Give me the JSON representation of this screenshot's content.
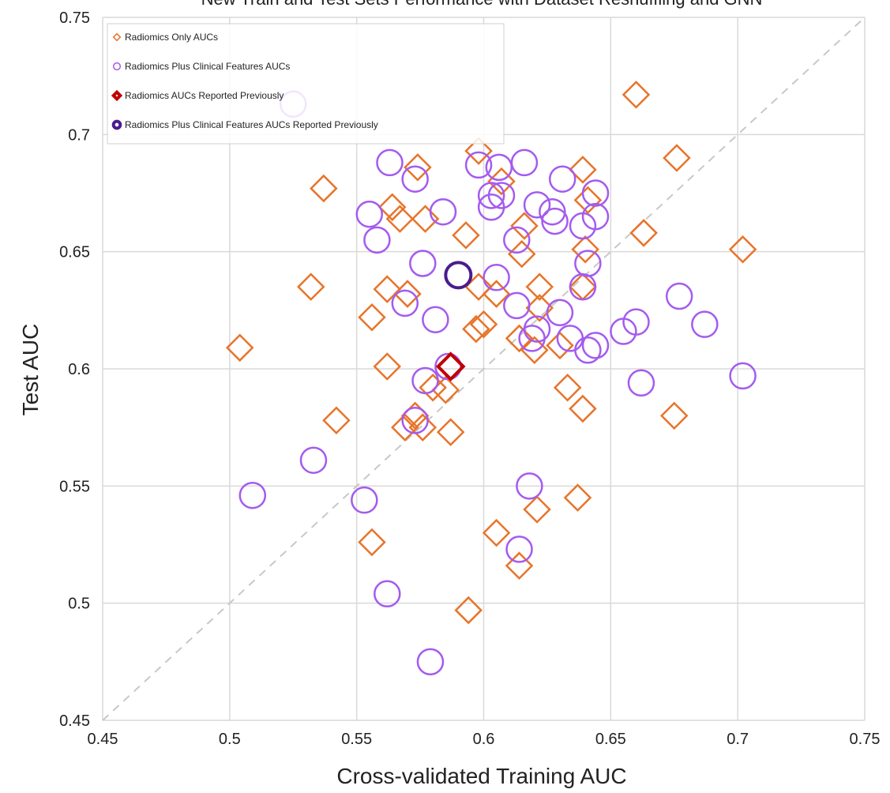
{
  "chart_data": {
    "type": "scatter",
    "title": "New Train and Test Sets Performance with Dataset Reshuffling and GNN",
    "xlabel": "Cross-validated Training AUC",
    "ylabel": "Test AUC",
    "xlim": [
      0.45,
      0.75
    ],
    "ylim": [
      0.45,
      0.75
    ],
    "xticks": [
      "0.45",
      "0.5",
      "0.55",
      "0.6",
      "0.65",
      "0.7",
      "0.75"
    ],
    "yticks": [
      "0.45",
      "0.5",
      "0.55",
      "0.6",
      "0.65",
      "0.7",
      "0.75"
    ],
    "grid": true,
    "legend_position": "top-left",
    "reference_line": "y = x (dashed)",
    "series": [
      {
        "name": "Radiomics Only AUCs",
        "marker": "diamond-open",
        "color": "#E8742A",
        "points": [
          [
            0.504,
            0.609
          ],
          [
            0.532,
            0.635
          ],
          [
            0.537,
            0.677
          ],
          [
            0.542,
            0.578
          ],
          [
            0.556,
            0.526
          ],
          [
            0.556,
            0.622
          ],
          [
            0.562,
            0.634
          ],
          [
            0.562,
            0.601
          ],
          [
            0.564,
            0.669
          ],
          [
            0.567,
            0.664
          ],
          [
            0.569,
            0.575
          ],
          [
            0.57,
            0.632
          ],
          [
            0.573,
            0.58
          ],
          [
            0.574,
            0.686
          ],
          [
            0.576,
            0.575
          ],
          [
            0.577,
            0.664
          ],
          [
            0.58,
            0.592
          ],
          [
            0.585,
            0.591
          ],
          [
            0.587,
            0.573
          ],
          [
            0.593,
            0.657
          ],
          [
            0.594,
            0.497
          ],
          [
            0.597,
            0.617
          ],
          [
            0.598,
            0.635
          ],
          [
            0.598,
            0.693
          ],
          [
            0.6,
            0.619
          ],
          [
            0.605,
            0.632
          ],
          [
            0.605,
            0.53
          ],
          [
            0.607,
            0.68
          ],
          [
            0.614,
            0.516
          ],
          [
            0.614,
            0.613
          ],
          [
            0.615,
            0.649
          ],
          [
            0.616,
            0.661
          ],
          [
            0.62,
            0.608
          ],
          [
            0.621,
            0.54
          ],
          [
            0.622,
            0.626
          ],
          [
            0.622,
            0.635
          ],
          [
            0.63,
            0.61
          ],
          [
            0.633,
            0.592
          ],
          [
            0.637,
            0.545
          ],
          [
            0.639,
            0.583
          ],
          [
            0.639,
            0.635
          ],
          [
            0.639,
            0.685
          ],
          [
            0.64,
            0.651
          ],
          [
            0.641,
            0.672
          ],
          [
            0.66,
            0.717
          ],
          [
            0.663,
            0.658
          ],
          [
            0.675,
            0.58
          ],
          [
            0.676,
            0.69
          ],
          [
            0.702,
            0.651
          ]
        ]
      },
      {
        "name": "Radiomics Plus Clinical Features AUCs",
        "marker": "circle-open",
        "color": "#A45BEF",
        "points": [
          [
            0.509,
            0.546
          ],
          [
            0.525,
            0.713
          ],
          [
            0.533,
            0.561
          ],
          [
            0.553,
            0.544
          ],
          [
            0.555,
            0.666
          ],
          [
            0.558,
            0.655
          ],
          [
            0.562,
            0.504
          ],
          [
            0.563,
            0.688
          ],
          [
            0.569,
            0.628
          ],
          [
            0.573,
            0.578
          ],
          [
            0.573,
            0.681
          ],
          [
            0.576,
            0.645
          ],
          [
            0.577,
            0.595
          ],
          [
            0.579,
            0.475
          ],
          [
            0.581,
            0.621
          ],
          [
            0.584,
            0.667
          ],
          [
            0.586,
            0.601
          ],
          [
            0.598,
            0.687
          ],
          [
            0.603,
            0.674
          ],
          [
            0.603,
            0.669
          ],
          [
            0.605,
            0.639
          ],
          [
            0.606,
            0.686
          ],
          [
            0.607,
            0.674
          ],
          [
            0.613,
            0.627
          ],
          [
            0.613,
            0.655
          ],
          [
            0.614,
            0.523
          ],
          [
            0.616,
            0.688
          ],
          [
            0.618,
            0.55
          ],
          [
            0.619,
            0.613
          ],
          [
            0.621,
            0.617
          ],
          [
            0.621,
            0.67
          ],
          [
            0.627,
            0.667
          ],
          [
            0.628,
            0.663
          ],
          [
            0.63,
            0.624
          ],
          [
            0.631,
            0.681
          ],
          [
            0.634,
            0.613
          ],
          [
            0.639,
            0.661
          ],
          [
            0.639,
            0.635
          ],
          [
            0.641,
            0.645
          ],
          [
            0.641,
            0.608
          ],
          [
            0.644,
            0.61
          ],
          [
            0.644,
            0.665
          ],
          [
            0.644,
            0.675
          ],
          [
            0.655,
            0.616
          ],
          [
            0.66,
            0.62
          ],
          [
            0.662,
            0.594
          ],
          [
            0.677,
            0.631
          ],
          [
            0.687,
            0.619
          ],
          [
            0.702,
            0.597
          ]
        ]
      },
      {
        "name": "Radiomics AUCs Reported Previously",
        "marker": "diamond-open-bold",
        "color": "#C00000",
        "points": [
          [
            0.587,
            0.601
          ]
        ]
      },
      {
        "name": "Radiomics Plus Clinical Features AUCs Reported Previously",
        "marker": "circle-open-bold",
        "color": "#4B1C8C",
        "points": [
          [
            0.59,
            0.64
          ]
        ]
      }
    ]
  }
}
